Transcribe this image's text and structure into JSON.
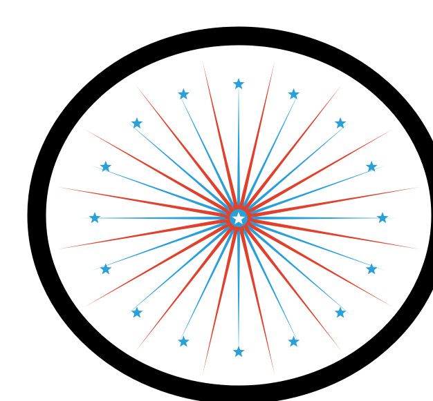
{
  "artwork": {
    "subject": "firework-starburst-emblem",
    "colors": {
      "background": "#ffffff",
      "ring": "#000000",
      "ray_red": "#e0412d",
      "ray_blue": "#2b9fd8",
      "star_blue": "#2b9fd8",
      "center_star": "#ffffff"
    },
    "ray_count": 32,
    "outer_star_count": 16,
    "icons": {
      "ring": "ring-frame",
      "ray": "ray-spike",
      "outer_star": "star-icon",
      "center": "center-starburst-icon"
    }
  }
}
